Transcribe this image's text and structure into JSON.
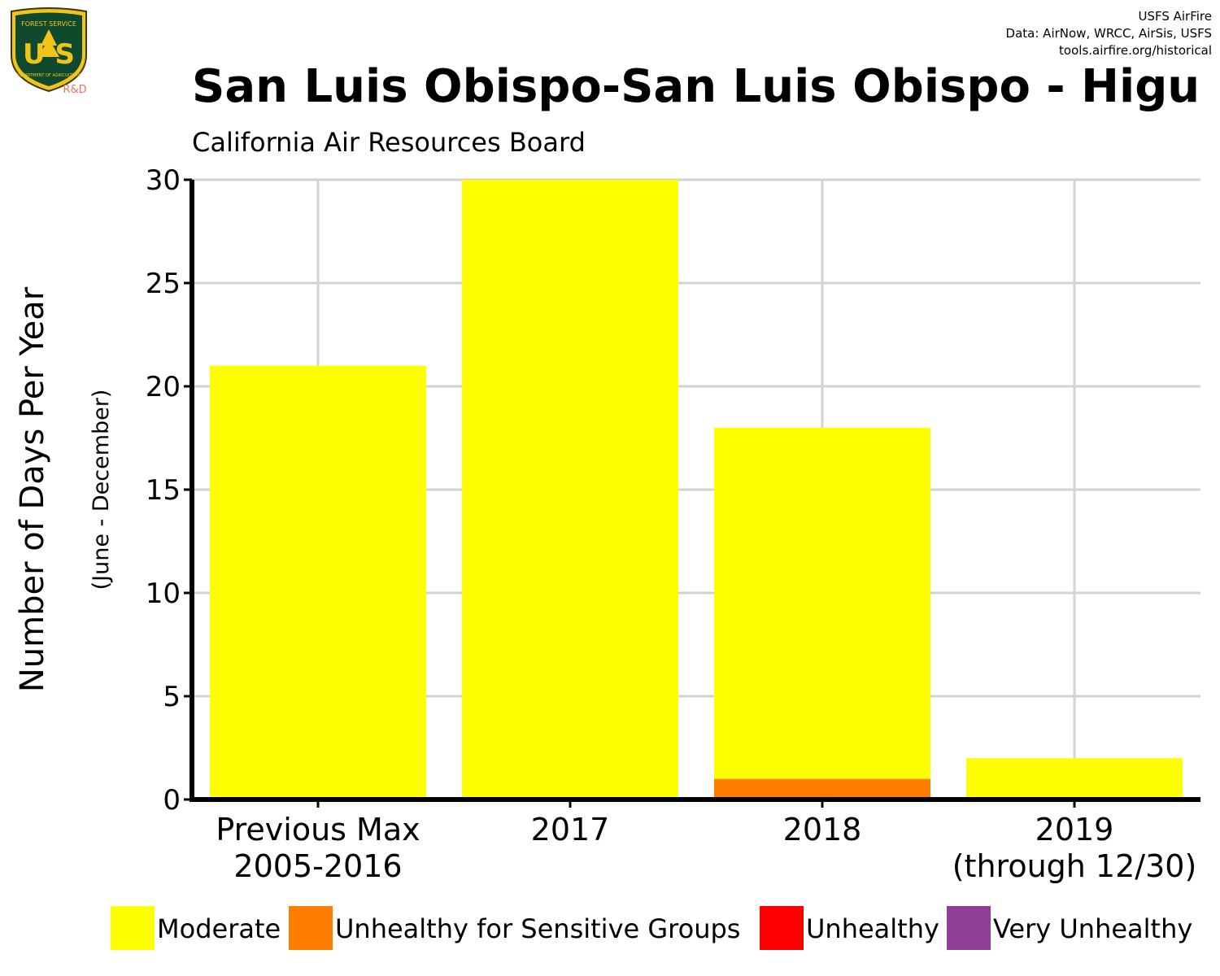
{
  "header": {
    "logo_text": {
      "top": "FOREST SERVICE",
      "letters": "U S",
      "bottom": "DEPARTMENT OF AGRICULTURE",
      "tag": "R&D"
    },
    "credits": [
      "USFS AirFire",
      "Data: AirNow, WRCC, AirSis, USFS",
      "tools.airfire.org/historical"
    ]
  },
  "colors": {
    "Moderate": "#ffff00",
    "Unhealthy for Sensitive Groups": "#ff7e00",
    "Unhealthy": "#ff0000",
    "Very Unhealthy": "#8f3f97",
    "grid": "#d3d3d3",
    "axis": "#000000"
  },
  "chart_data": {
    "type": "bar",
    "stacked": true,
    "title": "San Luis Obispo-San Luis Obispo - Higu",
    "subtitle": "California Air Resources Board",
    "xlabel": "",
    "ylabel": "Number of Days Per Year",
    "ylabel_sub": "(June - December)",
    "ylim": [
      0,
      30
    ],
    "yticks": [
      0,
      5,
      10,
      15,
      20,
      25,
      30
    ],
    "grid": true,
    "legend_position": "bottom",
    "categories": [
      [
        "Previous Max",
        "2005-2016"
      ],
      [
        "2017"
      ],
      [
        "2018"
      ],
      [
        "2019",
        "(through 12/30)"
      ]
    ],
    "series": [
      {
        "name": "Unhealthy for Sensitive Groups",
        "values": [
          0,
          0,
          1,
          0
        ]
      },
      {
        "name": "Moderate",
        "values": [
          21,
          30,
          17,
          2
        ]
      }
    ],
    "legend": [
      "Moderate",
      "Unhealthy for Sensitive Groups",
      "Unhealthy",
      "Very Unhealthy"
    ]
  }
}
